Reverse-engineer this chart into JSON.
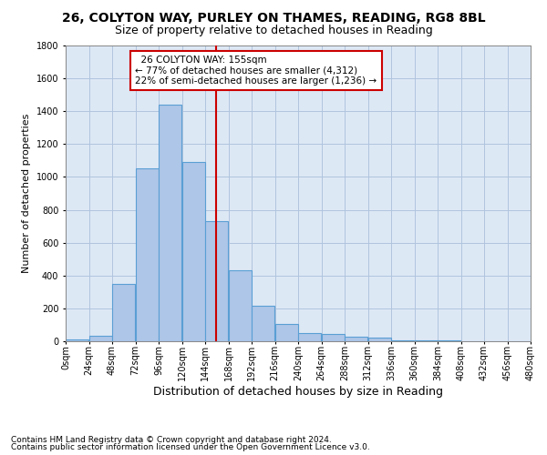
{
  "title1": "26, COLYTON WAY, PURLEY ON THAMES, READING, RG8 8BL",
  "title2": "Size of property relative to detached houses in Reading",
  "xlabel": "Distribution of detached houses by size in Reading",
  "ylabel": "Number of detached properties",
  "bin_edges": [
    0,
    24,
    48,
    72,
    96,
    120,
    144,
    168,
    192,
    216,
    240,
    264,
    288,
    312,
    336,
    360,
    384,
    408,
    432,
    456,
    480
  ],
  "bar_heights": [
    10,
    35,
    350,
    1050,
    1440,
    1090,
    730,
    430,
    215,
    105,
    50,
    45,
    30,
    20,
    5,
    5,
    5,
    2,
    1,
    1
  ],
  "bar_color": "#aec6e8",
  "bar_edge_color": "#5a9fd4",
  "vline_x": 155,
  "vline_color": "#cc0000",
  "annotation_text": "  26 COLYTON WAY: 155sqm  \n← 77% of detached houses are smaller (4,312)\n22% of semi-detached houses are larger (1,236) →",
  "annotation_box_color": "#cc0000",
  "ylim": [
    0,
    1800
  ],
  "tick_labels": [
    "0sqm",
    "24sqm",
    "48sqm",
    "72sqm",
    "96sqm",
    "120sqm",
    "144sqm",
    "168sqm",
    "192sqm",
    "216sqm",
    "240sqm",
    "264sqm",
    "288sqm",
    "312sqm",
    "336sqm",
    "360sqm",
    "384sqm",
    "408sqm",
    "432sqm",
    "456sqm",
    "480sqm"
  ],
  "footer1": "Contains HM Land Registry data © Crown copyright and database right 2024.",
  "footer2": "Contains public sector information licensed under the Open Government Licence v3.0.",
  "bg_color": "#ffffff",
  "plot_bg_color": "#dde8f5",
  "grid_color": "#b0c4de",
  "title1_fontsize": 10,
  "title2_fontsize": 9,
  "xlabel_fontsize": 9,
  "ylabel_fontsize": 8,
  "tick_fontsize": 7,
  "annotation_fontsize": 7.5,
  "footer_fontsize": 6.5
}
